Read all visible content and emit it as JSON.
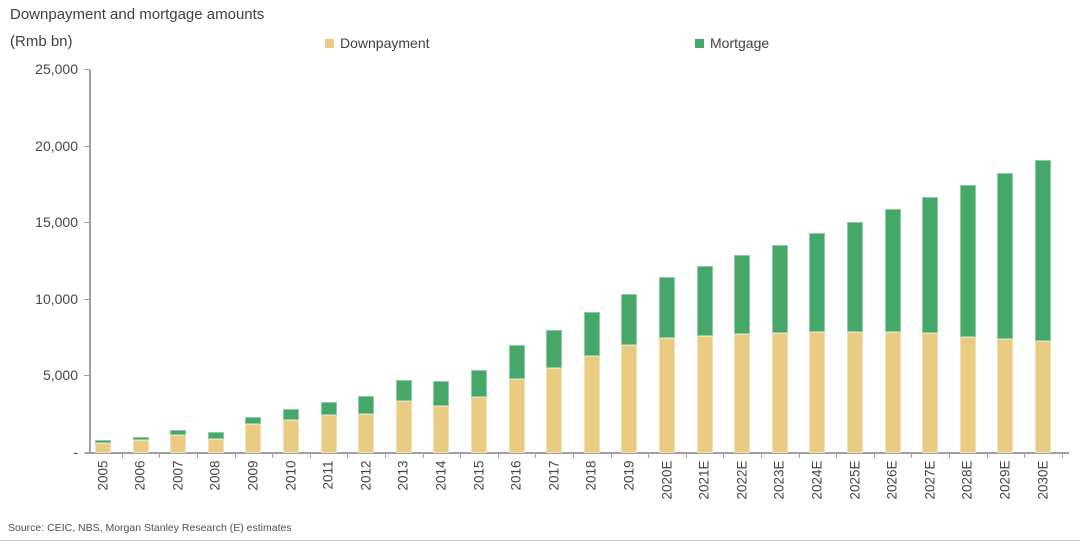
{
  "header": {
    "title": "Downpayment and mortgage amounts",
    "units": "(Rmb bn)"
  },
  "legend": [
    {
      "label": "Downpayment",
      "color": "#EACB82"
    },
    {
      "label": "Mortgage",
      "color": "#45A768"
    }
  ],
  "footer": {
    "source": "Source: CEIC, NBS, Morgan Stanley Research (E) estimates"
  },
  "chart_data": {
    "type": "bar",
    "stacked": true,
    "title": "Downpayment and mortgage amounts",
    "ylabel": "(Rmb bn)",
    "categories": [
      "2005",
      "2006",
      "2007",
      "2008",
      "2009",
      "2010",
      "2011",
      "2012",
      "2013",
      "2014",
      "2015",
      "2016",
      "2017",
      "2018",
      "2019",
      "2020E",
      "2021E",
      "2022E",
      "2023E",
      "2024E",
      "2025E",
      "2026E",
      "2027E",
      "2028E",
      "2029E",
      "2030E"
    ],
    "series": [
      {
        "name": "Downpayment",
        "color": "#EACB82",
        "values": [
          680,
          800,
          1175,
          950,
          1900,
          2150,
          2500,
          2600,
          3400,
          3100,
          3650,
          4850,
          5500,
          6300,
          7000,
          7500,
          7650,
          7750,
          7850,
          7900,
          7900,
          7900,
          7800,
          7600,
          7450,
          7300
        ]
      },
      {
        "name": "Mortgage",
        "color": "#45A768",
        "values": [
          190,
          225,
          350,
          440,
          480,
          720,
          860,
          1150,
          1350,
          1600,
          1750,
          2200,
          2500,
          2900,
          3350,
          4000,
          4550,
          5150,
          5750,
          6450,
          7200,
          8000,
          8900,
          9900,
          10850,
          11800
        ]
      }
    ],
    "totals": [
      870,
      1025,
      1525,
      1390,
      2380,
      2870,
      3360,
      3750,
      4750,
      4700,
      5400,
      7050,
      8000,
      9200,
      10350,
      11500,
      12200,
      12900,
      13600,
      14350,
      15100,
      15900,
      16700,
      17500,
      18300,
      19100
    ],
    "ylim": [
      0,
      25000
    ],
    "yticks": [
      {
        "value": 25000,
        "label": "25,000"
      },
      {
        "value": 20000,
        "label": "20,000"
      },
      {
        "value": 15000,
        "label": "15,000"
      },
      {
        "value": 10000,
        "label": "10,000"
      },
      {
        "value": 5000,
        "label": "5,000"
      },
      {
        "value": 0,
        "label": "-"
      }
    ],
    "grid": false,
    "legend_position": "top",
    "source": "Source: CEIC, NBS, Morgan Stanley Research (E) estimates"
  }
}
